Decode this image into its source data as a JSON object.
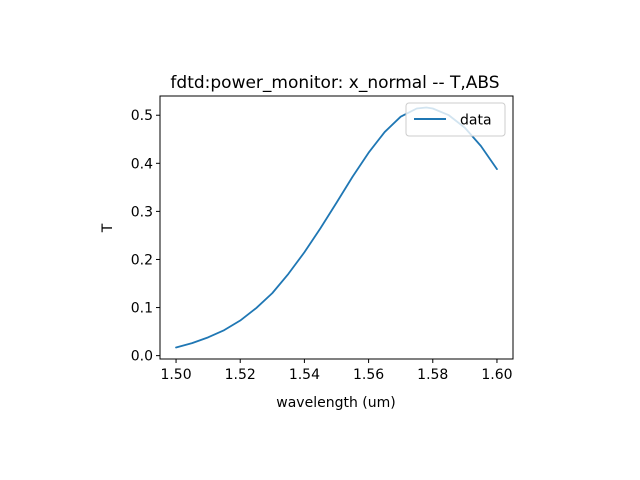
{
  "chart_data": {
    "type": "line",
    "title": "fdtd:power_monitor: x_normal -- T,ABS",
    "xlabel": "wavelength (um)",
    "ylabel": "T",
    "xlim": [
      1.495,
      1.605
    ],
    "ylim": [
      -0.007,
      0.54
    ],
    "xticks": [
      1.5,
      1.52,
      1.54,
      1.56,
      1.58,
      1.6
    ],
    "xtick_labels": [
      "1.50",
      "1.52",
      "1.54",
      "1.56",
      "1.58",
      "1.60"
    ],
    "yticks": [
      0.0,
      0.1,
      0.2,
      0.3,
      0.4,
      0.5
    ],
    "ytick_labels": [
      "0.0",
      "0.1",
      "0.2",
      "0.3",
      "0.4",
      "0.5"
    ],
    "grid": false,
    "legend_position": "top-right",
    "series": [
      {
        "name": "data",
        "color": "#1f77b4",
        "x": [
          1.5,
          1.505,
          1.51,
          1.515,
          1.52,
          1.525,
          1.53,
          1.535,
          1.54,
          1.545,
          1.55,
          1.555,
          1.56,
          1.565,
          1.57,
          1.575,
          1.578,
          1.58,
          1.585,
          1.59,
          1.595,
          1.6
        ],
        "y": [
          0.017,
          0.026,
          0.038,
          0.053,
          0.073,
          0.099,
          0.13,
          0.17,
          0.215,
          0.265,
          0.318,
          0.372,
          0.422,
          0.465,
          0.497,
          0.514,
          0.516,
          0.514,
          0.5,
          0.474,
          0.436,
          0.388
        ]
      }
    ]
  }
}
